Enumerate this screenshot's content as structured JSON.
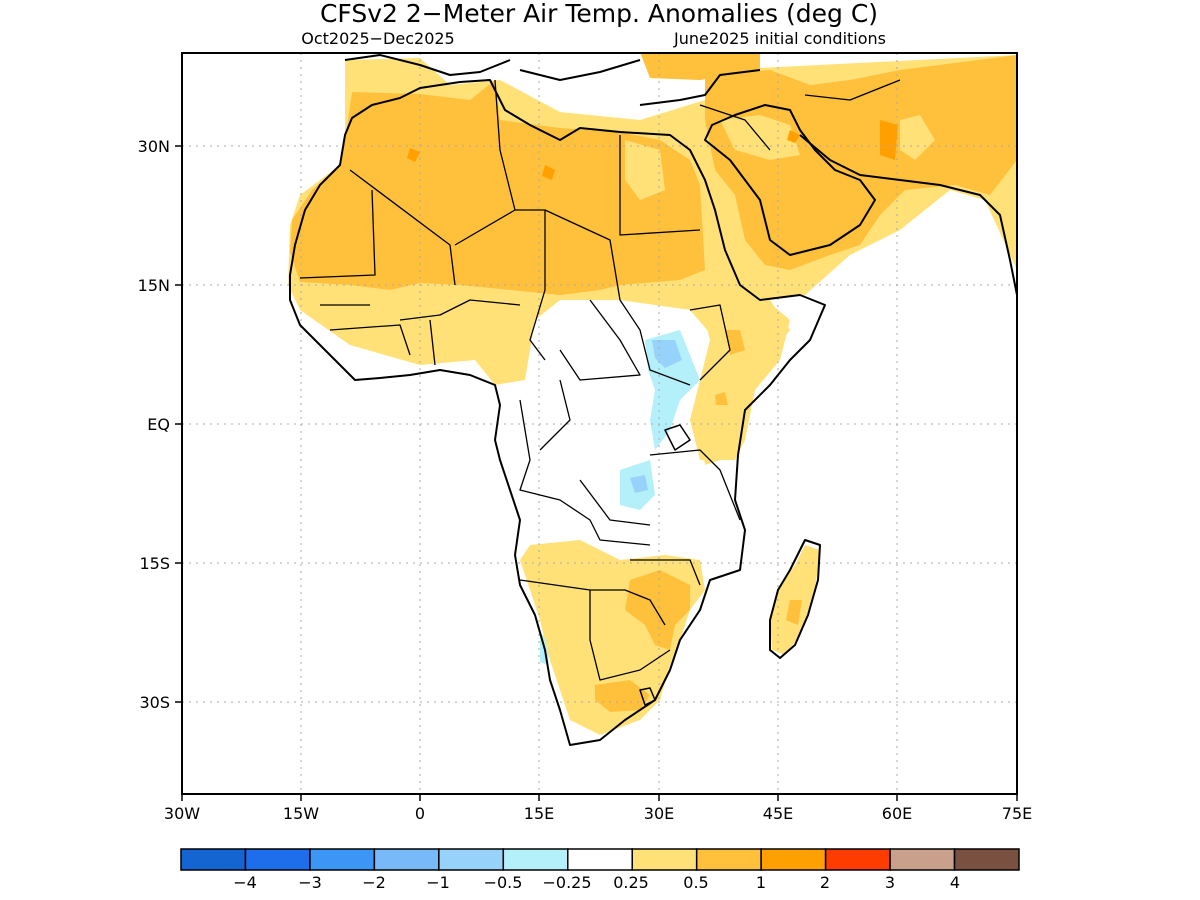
{
  "map": {
    "title": "CFSv2 2−Meter Air Temp. Anomalies (deg C)",
    "subtitle_left": "Oct2025−Dec2025",
    "subtitle_right": "June2025 initial conditions",
    "lon_labels": [
      "30W",
      "15W",
      "0",
      "15E",
      "30E",
      "45E",
      "60E",
      "75E"
    ],
    "lat_labels": [
      "30N",
      "15N",
      "EQ",
      "15S",
      "30S"
    ],
    "lon_range": [
      -30,
      75
    ],
    "lat_range": [
      -40,
      40
    ],
    "grid": "dotted",
    "colors": {
      "boundary": "#000000",
      "grid": "#aaaaaa"
    }
  },
  "colorbar": {
    "boxes": [
      "#1464d2",
      "#1e6eeb",
      "#3c96f5",
      "#78b9fa",
      "#96d2fa",
      "#b4f0fa",
      "#ffffff",
      "#ffe178",
      "#ffc03c",
      "#ffa000",
      "#ff3c00",
      "#c8a08c",
      "#7a5040"
    ],
    "labels": [
      "−4",
      "−3",
      "−2",
      "−1",
      "−0.5",
      "−0.25",
      "0.25",
      "0.5",
      "1",
      "2",
      "3",
      "4"
    ]
  }
}
